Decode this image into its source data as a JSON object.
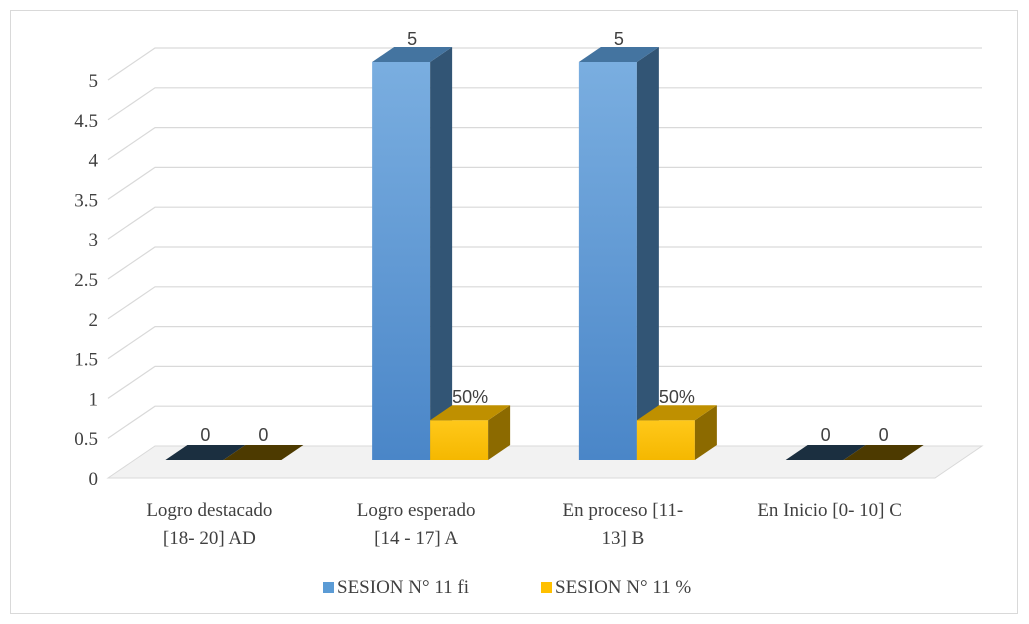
{
  "chart_data": {
    "type": "bar",
    "categories": [
      [
        "Logro destacado",
        "[18- 20] AD"
      ],
      [
        "Logro esperado",
        "[14 - 17] A"
      ],
      [
        "En proceso  [11-",
        "13] B"
      ],
      [
        "En Inicio  [0- 10] C"
      ]
    ],
    "series": [
      {
        "name": "SESION N° 11 fi",
        "values": [
          0,
          5,
          5,
          0
        ],
        "data_labels": [
          "0",
          "5",
          "5",
          "0"
        ],
        "color": "#5B9BD5"
      },
      {
        "name": "SESION N° 11 %",
        "values": [
          0,
          0.5,
          0.5,
          0
        ],
        "data_labels": [
          "0",
          "50%",
          "50%",
          "0"
        ],
        "color": "#FFC000"
      }
    ],
    "y_ticks": [
      "0",
      "0.5",
      "1",
      "1.5",
      "2",
      "2.5",
      "3",
      "3.5",
      "4",
      "4.5",
      "5"
    ],
    "ylim": [
      0,
      5
    ],
    "grid": true,
    "legend_position": "bottom",
    "style": "3d-clustered-column"
  }
}
